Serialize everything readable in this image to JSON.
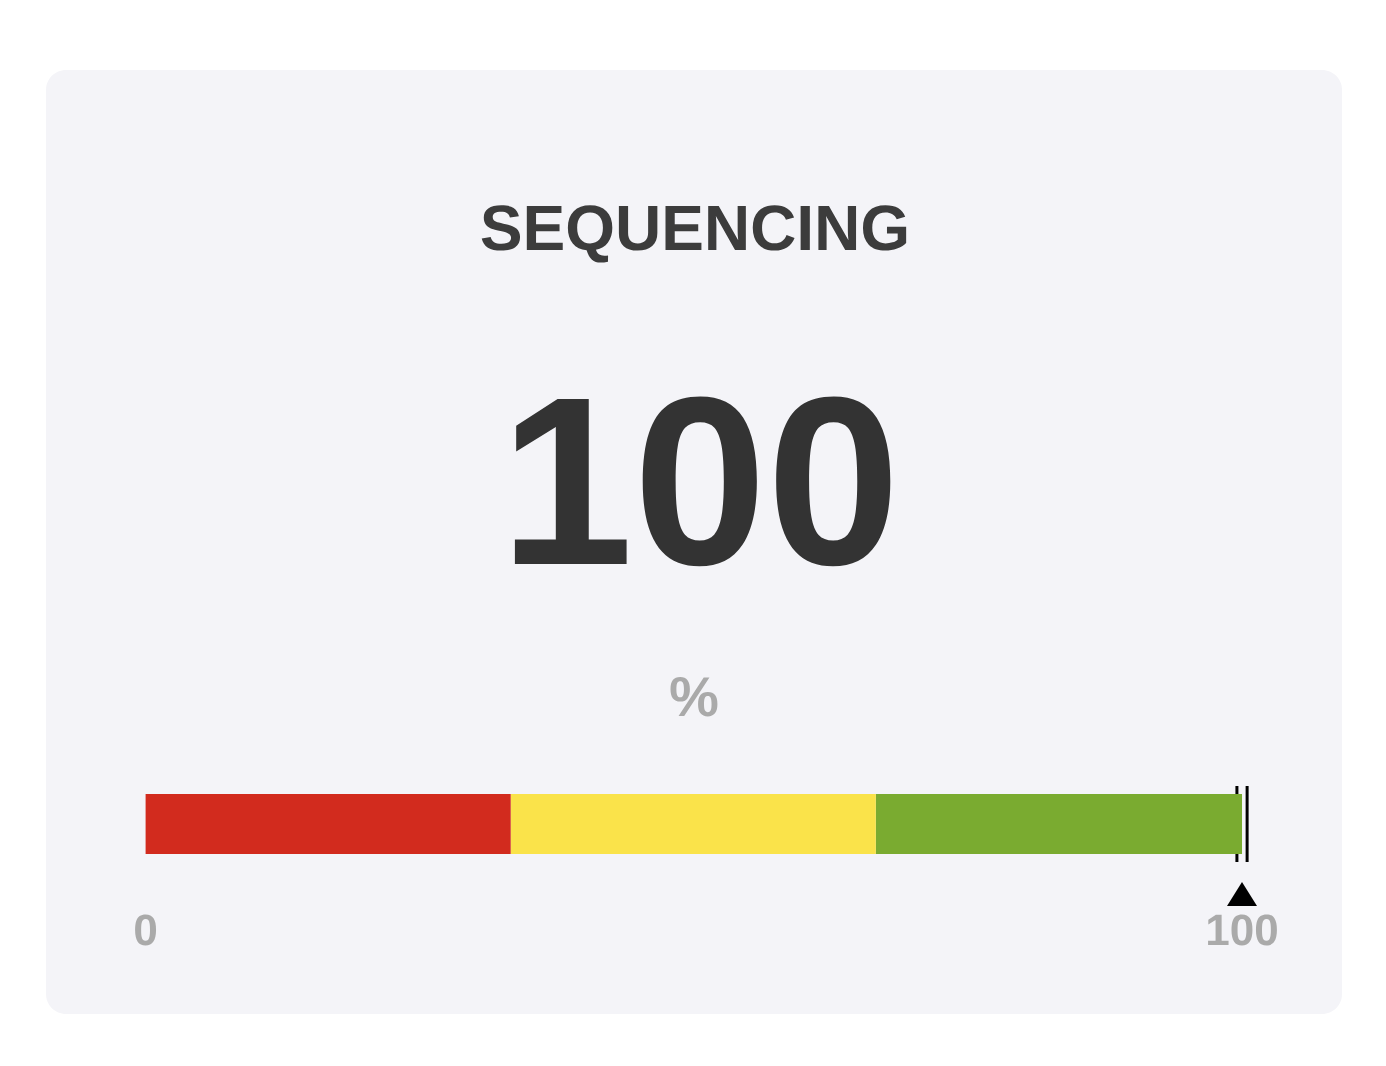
{
  "chart_data": {
    "type": "bar",
    "orientation": "horizontal",
    "stacked": true,
    "title": "SEQUENCING",
    "annotations": [
      "100",
      "%"
    ],
    "categories": [
      null
    ],
    "series": [
      {
        "color": "#d22b1e",
        "values": [
          33.3
        ]
      },
      {
        "color": "#fae34a",
        "values": [
          33.3
        ]
      },
      {
        "color": "#7aab30",
        "values": [
          33.4
        ]
      }
    ],
    "xlim": [
      0,
      100
    ],
    "xticks": [
      0,
      100
    ],
    "tick_labels": "x",
    "ref_lines": [
      {
        "axis": "x",
        "value": 100,
        "color": "#000000"
      }
    ]
  }
}
